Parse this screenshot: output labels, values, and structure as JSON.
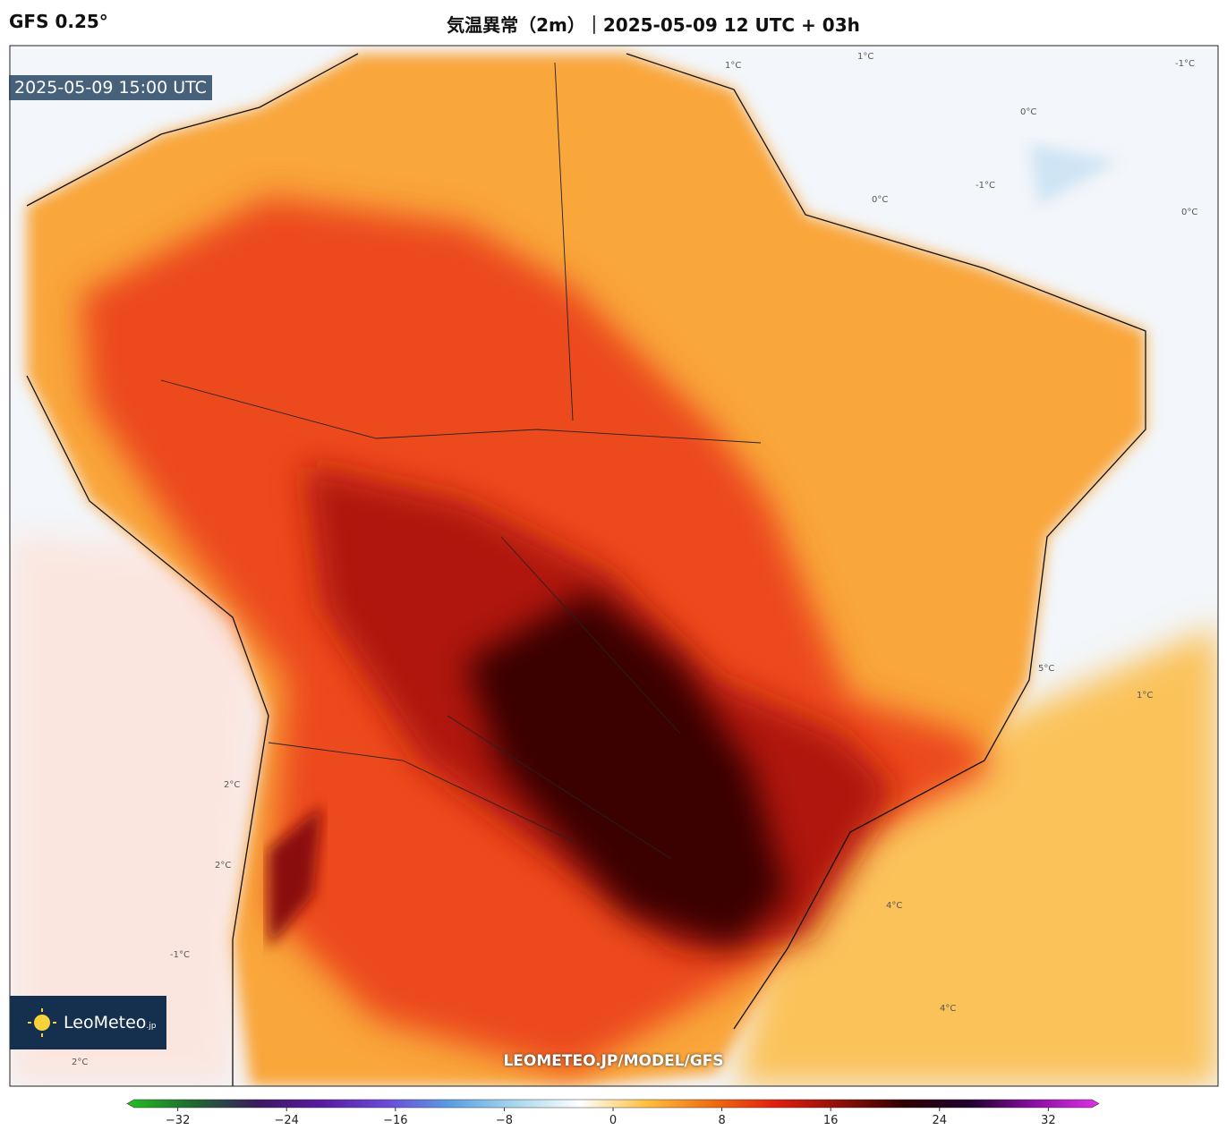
{
  "header": {
    "model": "GFS 0.25°",
    "title": "気温異常（2m）｜2025-05-09 12 UTC + 03h",
    "valid_time": "2025-05-09 15:00 UTC"
  },
  "logo": {
    "name": "LeoMeteo",
    "suffix": ".jp"
  },
  "watermark": "LEOMETEO.JP/MODEL/GFS",
  "contour_labels": [
    "1°C",
    "1°C",
    "-1°C",
    "0°C",
    "0°C",
    "-1°C",
    "0°C",
    "2°C",
    "2°C",
    "-1°C",
    "4°C",
    "4°C",
    "5°C",
    "2°C",
    "1°C"
  ],
  "colorbar": {
    "range": [
      -35.2,
      35.2
    ],
    "ticks": [
      {
        "value": -32,
        "label": "−32"
      },
      {
        "value": -24,
        "label": "−24"
      },
      {
        "value": -16,
        "label": "−16"
      },
      {
        "value": -8,
        "label": "−8"
      },
      0,
      8,
      16,
      24,
      32
    ],
    "colors": [
      "#22c022",
      "#206a30",
      "#3a1a60",
      "#5a1aa0",
      "#6a4ad8",
      "#5aa0e0",
      "#a8d8f0",
      "#ffffff",
      "#ffc040",
      "#f07010",
      "#e02010",
      "#901008",
      "#300000",
      "#200030",
      "#8a10a0",
      "#e030e8"
    ]
  }
}
